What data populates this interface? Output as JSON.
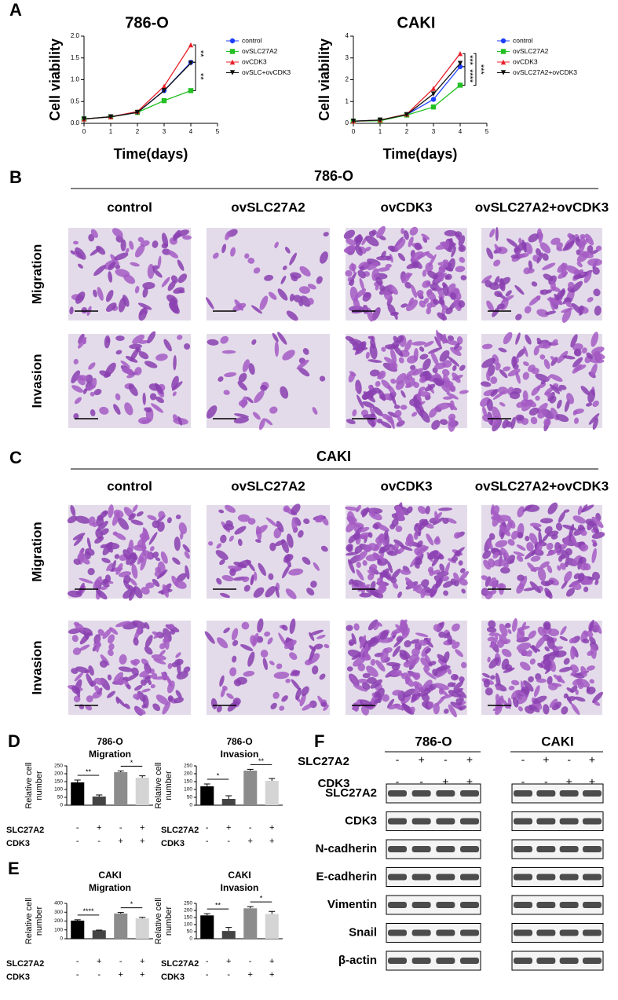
{
  "panel_labels": [
    "A",
    "B",
    "C",
    "D",
    "E",
    "F"
  ],
  "chart_data": [
    {
      "type": "line",
      "title": "786-O",
      "xlabel": "Time(days)",
      "ylabel": "Cell viability",
      "x": [
        0,
        1,
        2,
        3,
        4
      ],
      "xlim": [
        0,
        5
      ],
      "xticks": [
        0,
        1,
        2,
        3,
        4,
        5
      ],
      "ylim": [
        0,
        2
      ],
      "yticks": [
        {
          "value": 0,
          "label": "0.0"
        },
        0.5,
        {
          "value": 1,
          "label": "1.0"
        },
        1.5,
        {
          "value": 2,
          "label": "2.0"
        }
      ],
      "series": [
        {
          "name": "control",
          "color": "#1f3fff",
          "marker": "circle",
          "values": [
            0.1,
            0.15,
            0.25,
            0.75,
            1.4
          ]
        },
        {
          "name": "ovSLC27A2",
          "color": "#22c022",
          "marker": "square",
          "values": [
            0.1,
            0.15,
            0.25,
            0.52,
            0.75
          ]
        },
        {
          "name": "ovCDK3",
          "color": "#e8202a",
          "marker": "triangle",
          "values": [
            0.1,
            0.15,
            0.27,
            0.85,
            1.8
          ]
        },
        {
          "name": "ovSLC+ovCDK3",
          "color": "#111111",
          "marker": "down-triangle",
          "values": [
            0.1,
            0.15,
            0.25,
            0.75,
            1.38
          ]
        }
      ],
      "annotations": [
        "**",
        "**"
      ]
    },
    {
      "type": "line",
      "title": "CAKI",
      "xlabel": "Time(days)",
      "ylabel": "Cell viability",
      "x": [
        0,
        1,
        2,
        3,
        4
      ],
      "xlim": [
        0,
        5
      ],
      "xticks": [
        0,
        1,
        2,
        3,
        4,
        5
      ],
      "ylim": [
        0,
        4
      ],
      "yticks": [
        0,
        1,
        2,
        3,
        4
      ],
      "series": [
        {
          "name": "control",
          "color": "#1f3fff",
          "marker": "circle",
          "values": [
            0.1,
            0.15,
            0.4,
            1.1,
            2.6
          ]
        },
        {
          "name": "ovSLC27A2",
          "color": "#22c022",
          "marker": "square",
          "values": [
            0.1,
            0.12,
            0.38,
            0.75,
            1.75
          ]
        },
        {
          "name": "ovCDK3",
          "color": "#e8202a",
          "marker": "triangle",
          "values": [
            0.1,
            0.15,
            0.42,
            1.6,
            3.2
          ]
        },
        {
          "name": "ovSLC27A2+ovCDK3",
          "color": "#111111",
          "marker": "down-triangle",
          "values": [
            0.1,
            0.15,
            0.4,
            1.35,
            2.75
          ]
        }
      ],
      "annotations": [
        "***",
        "****",
        "***"
      ]
    },
    {
      "type": "bar",
      "title": [
        "786-O",
        "Migration"
      ],
      "ylabel": [
        "Relative cell",
        "number"
      ],
      "values": [
        145,
        55,
        210,
        175
      ],
      "errors": [
        15,
        10,
        8,
        12
      ],
      "colors": [
        "#000000",
        "#444444",
        "#8c8c8c",
        "#d4d4d4"
      ],
      "ylim": [
        0,
        250
      ],
      "yticks": [
        0,
        50,
        100,
        150,
        200,
        250
      ],
      "factors": [
        {
          "name": "SLC27A2",
          "levels": [
            "-",
            "+",
            "-",
            "+"
          ]
        },
        {
          "name": "CDK3",
          "levels": [
            "-",
            "-",
            "+",
            "+"
          ]
        }
      ],
      "annotations": [
        "**",
        "*"
      ]
    },
    {
      "type": "bar",
      "title": [
        "786-O",
        "Invasion"
      ],
      "ylabel": [
        "Relative cell",
        "number"
      ],
      "values": [
        120,
        40,
        220,
        155
      ],
      "errors": [
        15,
        20,
        8,
        15
      ],
      "colors": [
        "#000000",
        "#444444",
        "#8c8c8c",
        "#d4d4d4"
      ],
      "ylim": [
        0,
        250
      ],
      "yticks": [
        0,
        50,
        100,
        150,
        200,
        250
      ],
      "factors": [
        {
          "name": "SLC27A2",
          "levels": [
            "-",
            "+",
            "-",
            "+"
          ]
        },
        {
          "name": "CDK3",
          "levels": [
            "-",
            "-",
            "+",
            "+"
          ]
        }
      ],
      "annotations": [
        "*",
        "**"
      ]
    },
    {
      "type": "bar",
      "title": [
        "CAKI",
        "Migration"
      ],
      "ylabel": [
        "Relative cell",
        "number"
      ],
      "values": [
        205,
        95,
        285,
        230
      ],
      "errors": [
        10,
        3,
        12,
        12
      ],
      "colors": [
        "#000000",
        "#444444",
        "#8c8c8c",
        "#d4d4d4"
      ],
      "ylim": [
        0,
        400
      ],
      "yticks": [
        0,
        100,
        200,
        300,
        400
      ],
      "factors": [
        {
          "name": "SLC27A2",
          "levels": [
            "-",
            "+",
            "-",
            "+"
          ]
        },
        {
          "name": "CDK3",
          "levels": [
            "-",
            "-",
            "+",
            "+"
          ]
        }
      ],
      "annotations": [
        "****",
        "*"
      ]
    },
    {
      "type": "bar",
      "title": [
        "CAKI",
        "Invasion"
      ],
      "ylabel": [
        "Relative cell",
        "number"
      ],
      "values": [
        165,
        55,
        215,
        175
      ],
      "errors": [
        12,
        25,
        12,
        18
      ],
      "colors": [
        "#000000",
        "#444444",
        "#8c8c8c",
        "#d4d4d4"
      ],
      "ylim": [
        0,
        250
      ],
      "yticks": [
        0,
        50,
        100,
        150,
        200,
        250
      ],
      "factors": [
        {
          "name": "SLC27A2",
          "levels": [
            "-",
            "+",
            "-",
            "+"
          ]
        },
        {
          "name": "CDK3",
          "levels": [
            "-",
            "-",
            "+",
            "+"
          ]
        }
      ],
      "annotations": [
        "**",
        "*"
      ]
    }
  ],
  "panel_b": {
    "title": "786-O",
    "columns": [
      "control",
      "ovSLC27A2",
      "ovCDK3",
      "ovSLC27A2+ovCDK3"
    ],
    "rows": [
      "Migration",
      "Invasion"
    ]
  },
  "panel_c": {
    "title": "CAKI",
    "columns": [
      "control",
      "ovSLC27A2",
      "ovCDK3",
      "ovSLC27A2+ovCDK3"
    ],
    "rows": [
      "Migration",
      "Invasion"
    ]
  },
  "panel_f": {
    "cell_lines": [
      "786-O",
      "CAKI"
    ],
    "factors": [
      {
        "name": "SLC27A2",
        "levels": [
          "-",
          "+",
          "-",
          "+"
        ]
      },
      {
        "name": "CDK3",
        "levels": [
          "-",
          "-",
          "+",
          "+"
        ]
      }
    ],
    "proteins": [
      "SLC27A2",
      "CDK3",
      "N-cadherin",
      "E-cadherin",
      "Vimentin",
      "Snail",
      "β-actin"
    ]
  }
}
